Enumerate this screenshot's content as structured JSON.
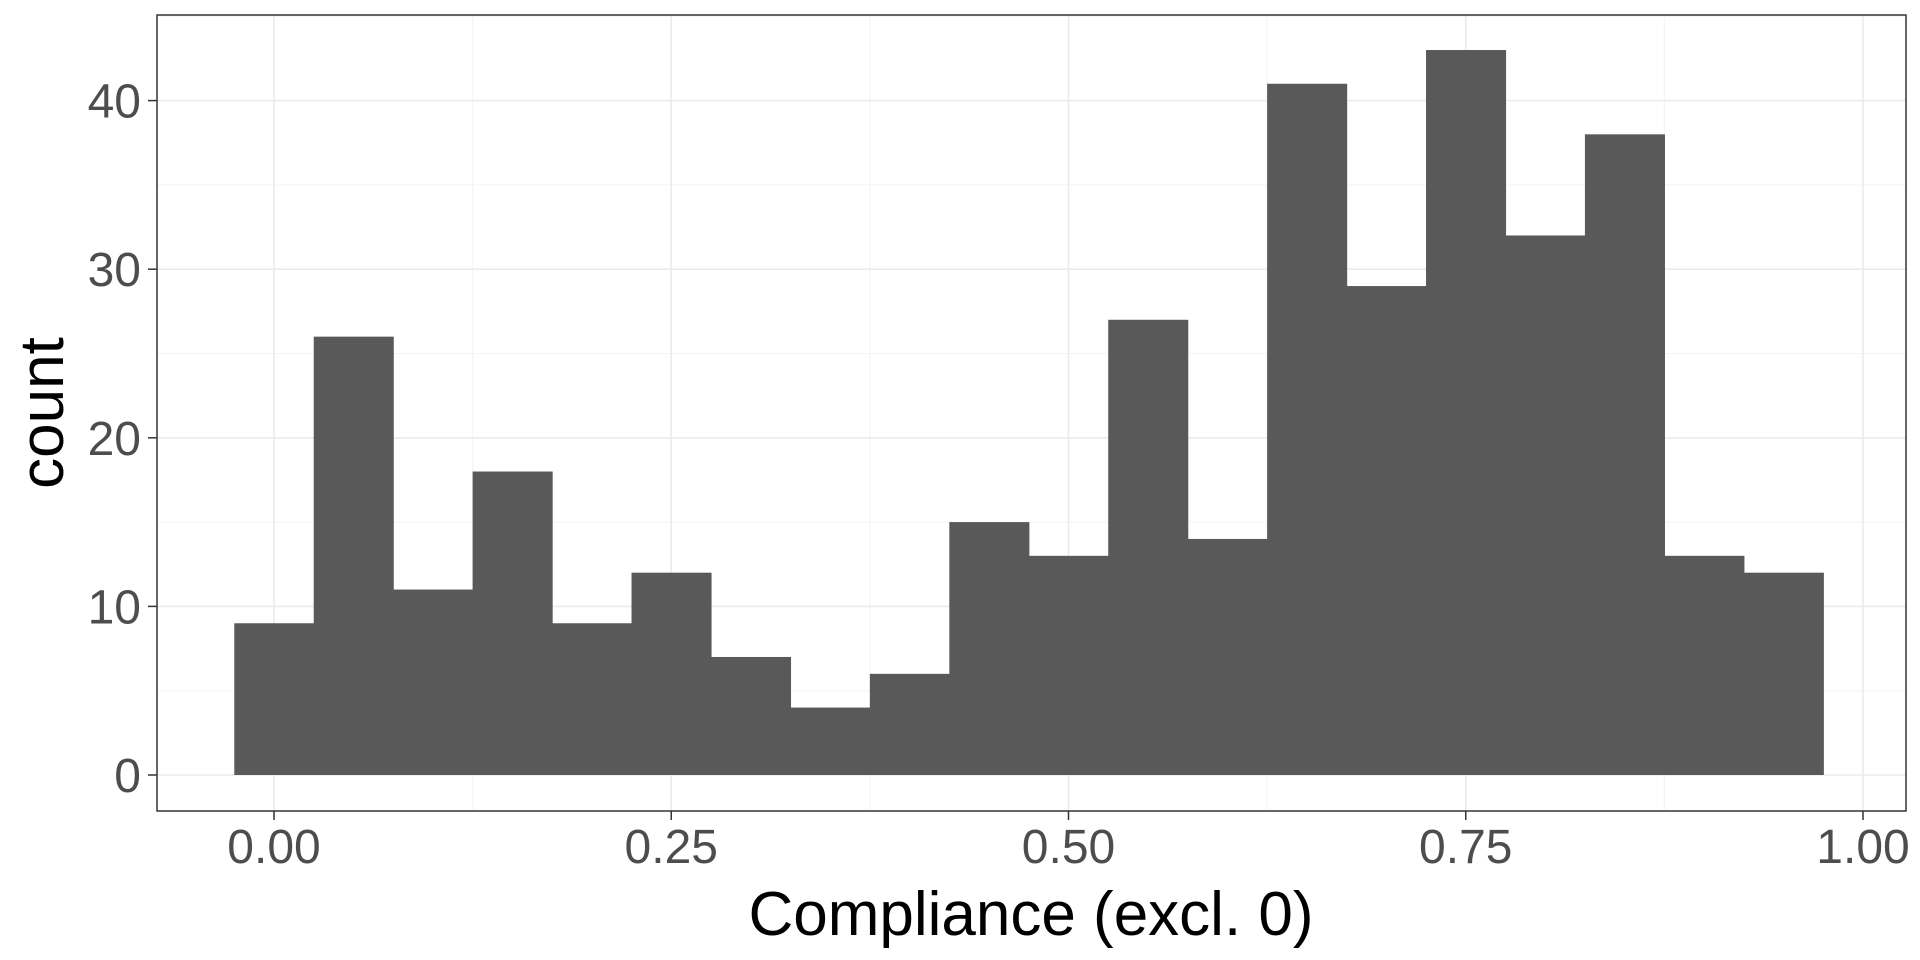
{
  "chart_data": {
    "type": "bar",
    "title": "",
    "xlabel": "Compliance (excl. 0)",
    "ylabel": "count",
    "xlim": [
      -0.075,
      1.025
    ],
    "ylim": [
      0,
      45
    ],
    "binwidth": 0.05,
    "x": [
      0.0,
      0.05,
      0.1,
      0.15,
      0.2,
      0.25,
      0.3,
      0.35,
      0.4,
      0.45,
      0.5,
      0.55,
      0.6,
      0.65,
      0.7,
      0.75,
      0.8,
      0.85,
      0.9,
      0.95
    ],
    "values": [
      9,
      26,
      11,
      18,
      9,
      12,
      7,
      4,
      6,
      15,
      13,
      27,
      14,
      41,
      29,
      43,
      32,
      38,
      13,
      12
    ],
    "x_ticks": [
      0.0,
      0.25,
      0.5,
      0.75,
      1.0
    ],
    "x_tick_labels": [
      "0.00",
      "0.25",
      "0.50",
      "0.75",
      "1.00"
    ],
    "y_ticks": [
      0,
      10,
      20,
      30,
      40
    ],
    "y_tick_labels": [
      "0",
      "10",
      "20",
      "30",
      "40"
    ],
    "grid": true,
    "legend": "none",
    "colors": {
      "bar_fill": "#595959",
      "panel_background": "#ffffff",
      "grid_major": "#ebebeb",
      "grid_minor": "#f5f5f5",
      "panel_border": "#333333",
      "tick_text": "#4d4d4d",
      "axis_title": "#000000"
    }
  }
}
